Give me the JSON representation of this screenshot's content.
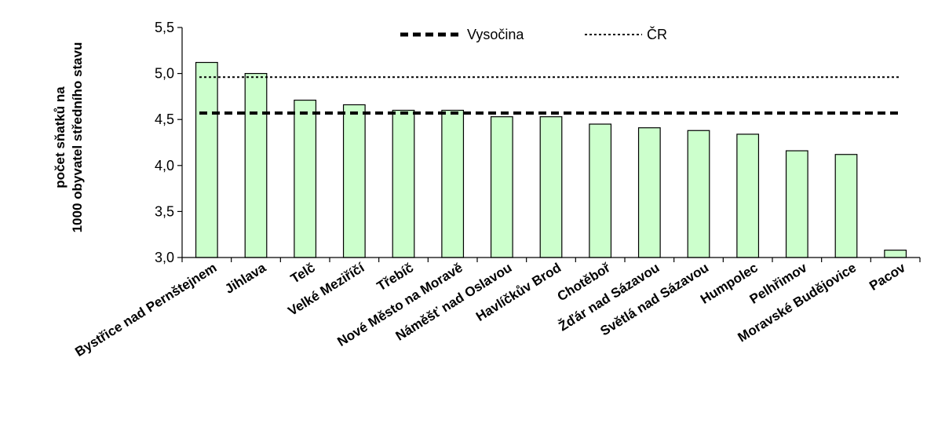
{
  "chart_data": {
    "type": "bar",
    "ylabel_lines": [
      "počet sňatků na",
      "1000 obyvatel středního stavu"
    ],
    "categories": [
      "Bystřice nad Pernštejnem",
      "Jihlava",
      "Telč",
      "Velké Meziříčí",
      "Třebíč",
      "Nové Město na Moravě",
      "Náměšť nad Oslavou",
      "Havlíčkův Brod",
      "Chotěboř",
      "Žďár nad Sázavou",
      "Světlá nad Sázavou",
      "Humpolec",
      "Pelhřimov",
      "Moravské Budějovice",
      "Pacov"
    ],
    "values": [
      5.12,
      5.0,
      4.71,
      4.66,
      4.6,
      4.6,
      4.53,
      4.53,
      4.45,
      4.41,
      4.38,
      4.34,
      4.16,
      4.12,
      3.08
    ],
    "ylim": [
      3.0,
      5.5
    ],
    "yticks": [
      "3,0",
      "3,5",
      "4,0",
      "4,5",
      "5,0",
      "5,5"
    ],
    "reference_lines": [
      {
        "name": "Vysočina",
        "value": 4.57,
        "style": "thick-dashed"
      },
      {
        "name": "ČR",
        "value": 4.96,
        "style": "dotted"
      }
    ],
    "bar_color": "#ccffcc",
    "bar_border": "#000000",
    "legend_position": "top-center",
    "grid": false
  }
}
